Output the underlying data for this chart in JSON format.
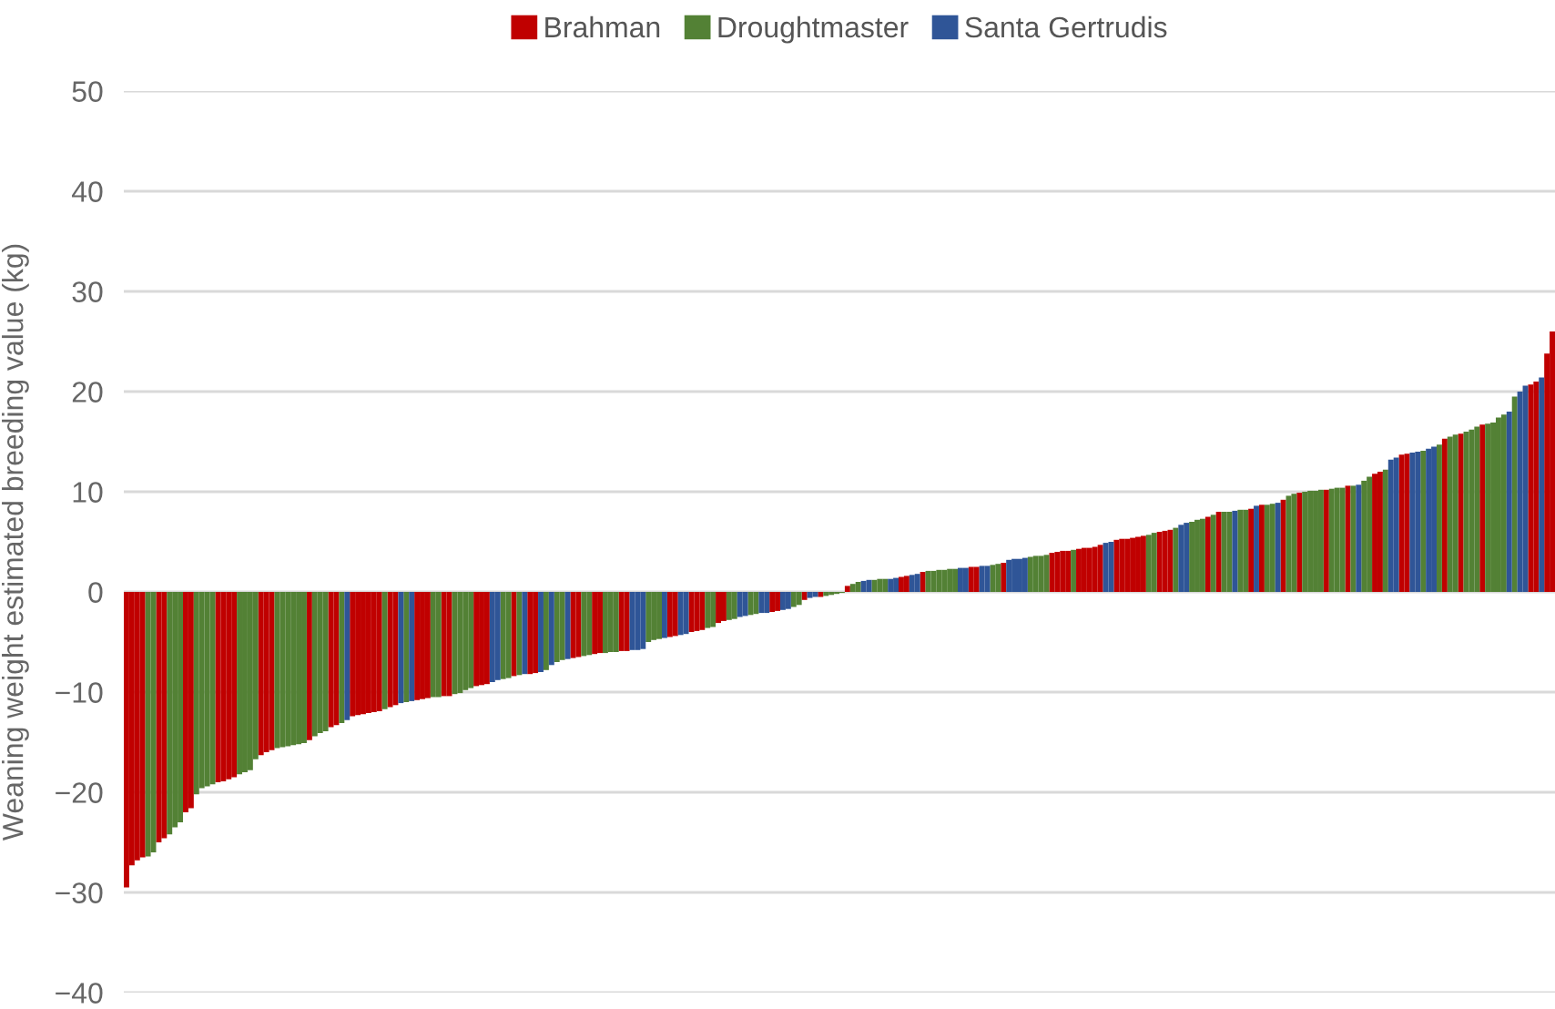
{
  "chart_data": {
    "type": "bar",
    "ylabel": "Weaning weight estimated breeding value (kg)",
    "categories": [
      null,
      null,
      null,
      null,
      null,
      null,
      null,
      null,
      null,
      null,
      null,
      null,
      null,
      null,
      null,
      null,
      null,
      null,
      null,
      null,
      null,
      null,
      null,
      null,
      null,
      null,
      null,
      null,
      null,
      null,
      null,
      null,
      null,
      null,
      null,
      null,
      null,
      null,
      null,
      null,
      null,
      null,
      null,
      null,
      null,
      null,
      null,
      null,
      null,
      null,
      null,
      null,
      null,
      null,
      null,
      null,
      null,
      null,
      null,
      null,
      null,
      null,
      null,
      null,
      null,
      null,
      null,
      null,
      null,
      null,
      null,
      null,
      null,
      null,
      null,
      null,
      null,
      null,
      null,
      null,
      null,
      null,
      null,
      null,
      null,
      null,
      null,
      null,
      null,
      null,
      null,
      null,
      null,
      null,
      null,
      null,
      null,
      null,
      null,
      null,
      null,
      null,
      null,
      null,
      null,
      null,
      null,
      null,
      null,
      null,
      null,
      null,
      null,
      null,
      null,
      null,
      null,
      null,
      null,
      null,
      null,
      null,
      null,
      null,
      null,
      null,
      null,
      null,
      null,
      null,
      null,
      null,
      null,
      null,
      null,
      null,
      null,
      null,
      null,
      null,
      null,
      null,
      null,
      null,
      null,
      null,
      null,
      null,
      null,
      null,
      null,
      null,
      null,
      null,
      null,
      null,
      null,
      null,
      null,
      null,
      null,
      null,
      null,
      null,
      null,
      null,
      null,
      null,
      null,
      null,
      null,
      null,
      null,
      null,
      null,
      null,
      null,
      null,
      null,
      null,
      null,
      null,
      null,
      null,
      null,
      null,
      null,
      null,
      null,
      null,
      null,
      null,
      null,
      null,
      null,
      null,
      null,
      null,
      null,
      null,
      null,
      null,
      null,
      null,
      null,
      null,
      null,
      null,
      null,
      null,
      null,
      null,
      null,
      null,
      null,
      null,
      null,
      null,
      null,
      null,
      null,
      null,
      null,
      null,
      null,
      null,
      null,
      null,
      null,
      null,
      null,
      null,
      null,
      null,
      null,
      null,
      null,
      null,
      null,
      null,
      null,
      null,
      null,
      null,
      null,
      null,
      null,
      null,
      null,
      null,
      null,
      null,
      null,
      null,
      null,
      null,
      null,
      null,
      null,
      null,
      null,
      null,
      null,
      null,
      null,
      null
    ],
    "series": [
      {
        "name": "Brahman",
        "color": "#c00000",
        "values": [
          -29.5,
          -27.3,
          -26.8,
          -26.5,
          null,
          null,
          -25.0,
          -24.6,
          null,
          null,
          null,
          -22.0,
          -21.6,
          null,
          null,
          null,
          null,
          -19.0,
          -18.9,
          -18.7,
          -18.5,
          null,
          null,
          null,
          null,
          -16.3,
          -16.0,
          -15.8,
          null,
          null,
          null,
          null,
          null,
          null,
          -14.8,
          null,
          null,
          null,
          -13.5,
          -13.3,
          null,
          null,
          -12.4,
          -12.3,
          -12.2,
          -12.1,
          -12.0,
          -11.9,
          null,
          -11.5,
          -11.3,
          null,
          null,
          null,
          -10.8,
          -10.7,
          -10.6,
          null,
          null,
          -10.4,
          -10.4,
          null,
          null,
          null,
          null,
          -9.4,
          -9.3,
          -9.2,
          null,
          null,
          null,
          null,
          -8.4,
          null,
          null,
          -8.2,
          -8.1,
          null,
          null,
          null,
          null,
          null,
          null,
          -6.6,
          -6.5,
          null,
          null,
          -6.2,
          -6.1,
          null,
          null,
          null,
          -5.9,
          -5.9,
          null,
          null,
          null,
          null,
          null,
          null,
          null,
          -4.5,
          -4.4,
          null,
          null,
          -4.0,
          -3.9,
          -3.8,
          null,
          null,
          -3.1,
          -2.9,
          null,
          null,
          null,
          null,
          null,
          null,
          null,
          null,
          -2.0,
          -1.9,
          null,
          null,
          null,
          null,
          -0.8,
          null,
          null,
          -0.5,
          null,
          null,
          null,
          null,
          0.6,
          null,
          null,
          null,
          null,
          null,
          null,
          null,
          null,
          null,
          1.5,
          1.6,
          null,
          null,
          2.0,
          null,
          null,
          null,
          null,
          null,
          null,
          null,
          null,
          2.5,
          2.5,
          null,
          null,
          null,
          null,
          2.9,
          null,
          null,
          null,
          null,
          null,
          null,
          null,
          null,
          3.9,
          4.0,
          4.1,
          4.1,
          null,
          4.3,
          4.4,
          4.4,
          4.5,
          4.7,
          null,
          null,
          5.2,
          5.3,
          5.3,
          5.4,
          5.5,
          5.6,
          null,
          null,
          6.0,
          6.1,
          6.2,
          null,
          null,
          null,
          null,
          null,
          null,
          7.5,
          null,
          8.0,
          null,
          null,
          null,
          null,
          null,
          8.3,
          null,
          8.7,
          null,
          null,
          null,
          9.2,
          null,
          null,
          9.9,
          null,
          null,
          null,
          null,
          10.2,
          null,
          null,
          null,
          10.6,
          null,
          null,
          null,
          null,
          11.8,
          12.0,
          null,
          null,
          null,
          13.7,
          13.8,
          null,
          null,
          null,
          null,
          null,
          null,
          15.3,
          null,
          null,
          15.8,
          null,
          null,
          null,
          16.7,
          null,
          null,
          null,
          null,
          null,
          null,
          null,
          null,
          20.7,
          21.0,
          null,
          23.8,
          26.0
        ]
      },
      {
        "name": "Droughtmaster",
        "color": "#538135",
        "values": [
          null,
          null,
          null,
          null,
          -26.4,
          -26.0,
          null,
          null,
          -24.2,
          -23.5,
          -23.0,
          null,
          null,
          -20.2,
          -19.6,
          -19.4,
          -19.2,
          null,
          null,
          null,
          null,
          -18.2,
          -18.0,
          -17.8,
          -16.7,
          null,
          null,
          null,
          -15.6,
          -15.5,
          -15.4,
          -15.3,
          -15.2,
          -15.1,
          null,
          -14.4,
          -14.1,
          -13.9,
          null,
          null,
          -13.1,
          null,
          null,
          null,
          null,
          null,
          null,
          null,
          -11.7,
          null,
          null,
          null,
          -11.0,
          null,
          null,
          null,
          null,
          -10.5,
          -10.5,
          null,
          null,
          -10.2,
          -10.1,
          -9.8,
          -9.6,
          null,
          null,
          null,
          null,
          null,
          -8.7,
          -8.6,
          null,
          -8.3,
          null,
          null,
          null,
          null,
          -7.8,
          null,
          -7.0,
          -6.8,
          null,
          null,
          null,
          -6.4,
          -6.3,
          null,
          null,
          -6.1,
          -6.0,
          -6.0,
          null,
          null,
          null,
          null,
          null,
          -5.0,
          -4.8,
          -4.7,
          null,
          null,
          null,
          null,
          null,
          null,
          null,
          null,
          -3.6,
          -3.5,
          null,
          null,
          -2.8,
          -2.7,
          null,
          null,
          -2.3,
          -2.2,
          null,
          null,
          null,
          null,
          null,
          null,
          -1.5,
          -1.3,
          null,
          null,
          null,
          null,
          -0.4,
          -0.3,
          -0.2,
          -0.1,
          null,
          0.8,
          1.0,
          null,
          null,
          1.2,
          1.3,
          1.3,
          null,
          null,
          null,
          null,
          null,
          null,
          null,
          2.1,
          2.1,
          2.2,
          2.2,
          2.3,
          2.3,
          null,
          null,
          null,
          null,
          null,
          null,
          2.7,
          2.8,
          null,
          null,
          null,
          null,
          null,
          3.5,
          3.6,
          3.6,
          3.7,
          null,
          null,
          null,
          null,
          4.2,
          null,
          null,
          null,
          null,
          null,
          null,
          null,
          null,
          null,
          null,
          null,
          null,
          null,
          5.7,
          5.9,
          null,
          null,
          null,
          6.4,
          null,
          null,
          7.0,
          7.2,
          7.3,
          null,
          7.7,
          null,
          8.0,
          8.0,
          null,
          8.2,
          8.2,
          null,
          null,
          null,
          8.7,
          8.8,
          null,
          null,
          9.6,
          9.8,
          null,
          10.0,
          10.1,
          10.1,
          10.2,
          null,
          10.3,
          10.4,
          10.4,
          null,
          10.6,
          null,
          11.1,
          11.5,
          null,
          null,
          12.2,
          null,
          null,
          null,
          null,
          null,
          null,
          14.1,
          null,
          null,
          14.7,
          null,
          15.5,
          15.7,
          null,
          16.0,
          16.2,
          16.5,
          null,
          16.8,
          16.9,
          17.4,
          17.7,
          null,
          19.5,
          null,
          null,
          null,
          null,
          null,
          null,
          null
        ]
      },
      {
        "name": "Santa Gertrudis",
        "color": "#2f5597",
        "values": [
          null,
          null,
          null,
          null,
          null,
          null,
          null,
          null,
          null,
          null,
          null,
          null,
          null,
          null,
          null,
          null,
          null,
          null,
          null,
          null,
          null,
          null,
          null,
          null,
          null,
          null,
          null,
          null,
          null,
          null,
          null,
          null,
          null,
          null,
          null,
          null,
          null,
          null,
          null,
          null,
          null,
          -12.8,
          null,
          null,
          null,
          null,
          null,
          null,
          null,
          null,
          null,
          -11.1,
          null,
          -10.9,
          null,
          null,
          null,
          null,
          null,
          null,
          null,
          null,
          null,
          null,
          null,
          null,
          null,
          null,
          -9.0,
          -8.8,
          null,
          null,
          null,
          null,
          -8.2,
          null,
          null,
          -8.0,
          null,
          -7.3,
          null,
          null,
          -6.7,
          null,
          null,
          null,
          null,
          null,
          null,
          null,
          null,
          null,
          null,
          null,
          -5.8,
          -5.8,
          -5.7,
          null,
          null,
          null,
          -4.6,
          null,
          null,
          -4.3,
          -4.2,
          null,
          null,
          null,
          null,
          null,
          null,
          null,
          null,
          null,
          -2.5,
          -2.4,
          null,
          null,
          -2.1,
          -2.1,
          null,
          null,
          -1.8,
          -1.7,
          null,
          null,
          null,
          -0.6,
          -0.5,
          null,
          null,
          null,
          null,
          null,
          null,
          null,
          null,
          1.1,
          1.2,
          null,
          null,
          null,
          1.3,
          1.4,
          null,
          null,
          1.7,
          1.8,
          null,
          null,
          null,
          null,
          null,
          null,
          null,
          2.4,
          2.4,
          null,
          null,
          2.6,
          2.6,
          null,
          null,
          null,
          3.2,
          3.3,
          3.3,
          3.4,
          null,
          null,
          null,
          null,
          null,
          null,
          null,
          null,
          null,
          null,
          null,
          null,
          null,
          null,
          4.9,
          5.0,
          null,
          null,
          null,
          null,
          null,
          null,
          null,
          null,
          null,
          null,
          null,
          null,
          6.7,
          6.9,
          null,
          null,
          null,
          null,
          null,
          null,
          null,
          null,
          8.1,
          null,
          null,
          null,
          8.6,
          null,
          null,
          null,
          8.9,
          null,
          null,
          null,
          null,
          null,
          null,
          null,
          null,
          null,
          null,
          null,
          null,
          null,
          null,
          10.7,
          null,
          null,
          null,
          null,
          null,
          13.2,
          13.4,
          null,
          null,
          13.9,
          14.0,
          null,
          14.3,
          14.5,
          null,
          null,
          null,
          null,
          null,
          null,
          null,
          null,
          null,
          null,
          null,
          null,
          null,
          18.0,
          null,
          20.0,
          20.6,
          null,
          null,
          21.4,
          null,
          null
        ]
      }
    ],
    "ylim": [
      -40,
      50
    ],
    "yticks": [
      {
        "value": -40,
        "label": "−40"
      },
      {
        "value": -30,
        "label": "−30"
      },
      {
        "value": -20,
        "label": "−20"
      },
      {
        "value": -10,
        "label": "−10"
      },
      0,
      10,
      20,
      30,
      40,
      50
    ],
    "grid": "y",
    "legend": "top"
  }
}
